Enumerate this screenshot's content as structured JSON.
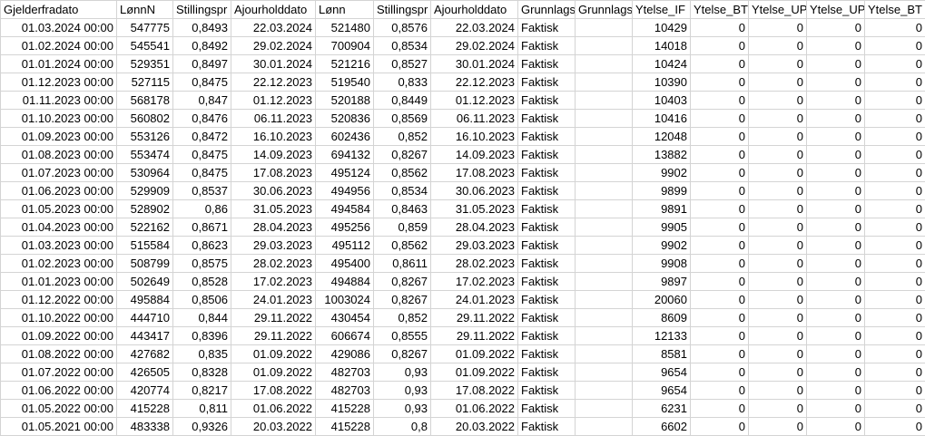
{
  "sheet": {
    "headers": [
      "Gjelderfradato",
      "LønnN",
      "Stillingspr",
      "Ajourholddato",
      "Lønn",
      "Stillingspr",
      "Ajourholddato",
      "Grunnlags",
      "Grunnlags",
      "Ytelse_IF",
      "Ytelse_BTI",
      "Ytelse_UP",
      "Ytelse_UPI",
      "Ytelse_BT"
    ],
    "rows": [
      [
        "01.03.2024 00:00",
        "547775",
        "0,8493",
        "22.03.2024",
        "521480",
        "0,8576",
        "22.03.2024",
        "Faktisk",
        "",
        "10429",
        "0",
        "0",
        "0",
        "0"
      ],
      [
        "01.02.2024 00:00",
        "545541",
        "0,8492",
        "29.02.2024",
        "700904",
        "0,8534",
        "29.02.2024",
        "Faktisk",
        "",
        "14018",
        "0",
        "0",
        "0",
        "0"
      ],
      [
        "01.01.2024 00:00",
        "529351",
        "0,8497",
        "30.01.2024",
        "521216",
        "0,8527",
        "30.01.2024",
        "Faktisk",
        "",
        "10424",
        "0",
        "0",
        "0",
        "0"
      ],
      [
        "01.12.2023 00:00",
        "527115",
        "0,8475",
        "22.12.2023",
        "519540",
        "0,833",
        "22.12.2023",
        "Faktisk",
        "",
        "10390",
        "0",
        "0",
        "0",
        "0"
      ],
      [
        "01.11.2023 00:00",
        "568178",
        "0,847",
        "01.12.2023",
        "520188",
        "0,8449",
        "01.12.2023",
        "Faktisk",
        "",
        "10403",
        "0",
        "0",
        "0",
        "0"
      ],
      [
        "01.10.2023 00:00",
        "560802",
        "0,8476",
        "06.11.2023",
        "520836",
        "0,8569",
        "06.11.2023",
        "Faktisk",
        "",
        "10416",
        "0",
        "0",
        "0",
        "0"
      ],
      [
        "01.09.2023 00:00",
        "553126",
        "0,8472",
        "16.10.2023",
        "602436",
        "0,852",
        "16.10.2023",
        "Faktisk",
        "",
        "12048",
        "0",
        "0",
        "0",
        "0"
      ],
      [
        "01.08.2023 00:00",
        "553474",
        "0,8475",
        "14.09.2023",
        "694132",
        "0,8267",
        "14.09.2023",
        "Faktisk",
        "",
        "13882",
        "0",
        "0",
        "0",
        "0"
      ],
      [
        "01.07.2023 00:00",
        "530964",
        "0,8475",
        "17.08.2023",
        "495124",
        "0,8562",
        "17.08.2023",
        "Faktisk",
        "",
        "9902",
        "0",
        "0",
        "0",
        "0"
      ],
      [
        "01.06.2023 00:00",
        "529909",
        "0,8537",
        "30.06.2023",
        "494956",
        "0,8534",
        "30.06.2023",
        "Faktisk",
        "",
        "9899",
        "0",
        "0",
        "0",
        "0"
      ],
      [
        "01.05.2023 00:00",
        "528902",
        "0,86",
        "31.05.2023",
        "494584",
        "0,8463",
        "31.05.2023",
        "Faktisk",
        "",
        "9891",
        "0",
        "0",
        "0",
        "0"
      ],
      [
        "01.04.2023 00:00",
        "522162",
        "0,8671",
        "28.04.2023",
        "495256",
        "0,859",
        "28.04.2023",
        "Faktisk",
        "",
        "9905",
        "0",
        "0",
        "0",
        "0"
      ],
      [
        "01.03.2023 00:00",
        "515584",
        "0,8623",
        "29.03.2023",
        "495112",
        "0,8562",
        "29.03.2023",
        "Faktisk",
        "",
        "9902",
        "0",
        "0",
        "0",
        "0"
      ],
      [
        "01.02.2023 00:00",
        "508799",
        "0,8575",
        "28.02.2023",
        "495400",
        "0,8611",
        "28.02.2023",
        "Faktisk",
        "",
        "9908",
        "0",
        "0",
        "0",
        "0"
      ],
      [
        "01.01.2023 00:00",
        "502649",
        "0,8528",
        "17.02.2023",
        "494884",
        "0,8267",
        "17.02.2023",
        "Faktisk",
        "",
        "9897",
        "0",
        "0",
        "0",
        "0"
      ],
      [
        "01.12.2022 00:00",
        "495884",
        "0,8506",
        "24.01.2023",
        "1003024",
        "0,8267",
        "24.01.2023",
        "Faktisk",
        "",
        "20060",
        "0",
        "0",
        "0",
        "0"
      ],
      [
        "01.10.2022 00:00",
        "444710",
        "0,844",
        "29.11.2022",
        "430454",
        "0,852",
        "29.11.2022",
        "Faktisk",
        "",
        "8609",
        "0",
        "0",
        "0",
        "0"
      ],
      [
        "01.09.2022 00:00",
        "443417",
        "0,8396",
        "29.11.2022",
        "606674",
        "0,8555",
        "29.11.2022",
        "Faktisk",
        "",
        "12133",
        "0",
        "0",
        "0",
        "0"
      ],
      [
        "01.08.2022 00:00",
        "427682",
        "0,835",
        "01.09.2022",
        "429086",
        "0,8267",
        "01.09.2022",
        "Faktisk",
        "",
        "8581",
        "0",
        "0",
        "0",
        "0"
      ],
      [
        "01.07.2022 00:00",
        "426505",
        "0,8328",
        "01.09.2022",
        "482703",
        "0,93",
        "01.09.2022",
        "Faktisk",
        "",
        "9654",
        "0",
        "0",
        "0",
        "0"
      ],
      [
        "01.06.2022 00:00",
        "420774",
        "0,8217",
        "17.08.2022",
        "482703",
        "0,93",
        "17.08.2022",
        "Faktisk",
        "",
        "9654",
        "0",
        "0",
        "0",
        "0"
      ],
      [
        "01.05.2022 00:00",
        "415228",
        "0,811",
        "01.06.2022",
        "415228",
        "0,93",
        "01.06.2022",
        "Faktisk",
        "",
        "6231",
        "0",
        "0",
        "0",
        "0"
      ],
      [
        "01.05.2021 00:00",
        "483338",
        "0,9326",
        "20.03.2022",
        "415228",
        "0,8",
        "20.03.2022",
        "Faktisk",
        "",
        "6602",
        "0",
        "0",
        "0",
        "0"
      ]
    ]
  }
}
